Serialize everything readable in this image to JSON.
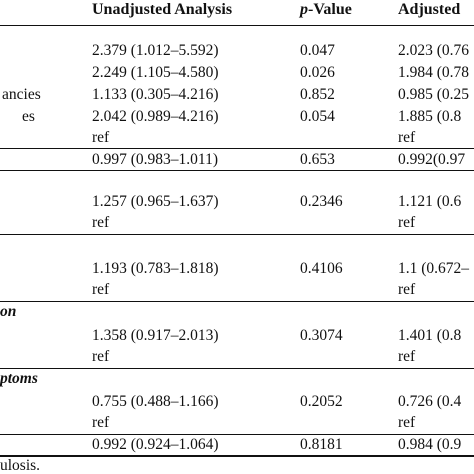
{
  "header": {
    "col_unadjusted": "Unadjusted Analysis",
    "col_pvalue_p": "p",
    "col_pvalue_rest": "-Value",
    "col_adjusted": "Adjusted"
  },
  "rows": {
    "r1_label": "",
    "r1_u": "2.379 (1.012–5.592)",
    "r1_p": "0.047",
    "r1_a": "2.023 (0.76",
    "r2_u": "2.249 (1.105–4.580)",
    "r2_p": "0.026",
    "r2_a": "1.984 (0.78",
    "r3_label": "ancies",
    "r3_u": "1.133 (0.305–4.216)",
    "r3_p": "0.852",
    "r3_a": "0.985 (0.25",
    "r4_label": "es",
    "r4_u": "2.042 (0.989–4.216)",
    "r4_p": "0.054",
    "r4_a": "1.885 (0.8",
    "r5_u": "ref",
    "r5_a": "ref",
    "r6_u": "0.997 (0.983–1.011)",
    "r6_p": "0.653",
    "r6_a": "0.992(0.97",
    "r7_u": "1.257 (0.965–1.637)",
    "r7_p": "0.2346",
    "r7_a": "1.121 (0.6",
    "r8_u": "ref",
    "r8_a": "ref",
    "r9_u": "1.193 (0.783–1.818)",
    "r9_p": "0.4106",
    "r9_a": "1.1 (0.672–",
    "r10_u": "ref",
    "r10_a": "ref",
    "sec_on": "on",
    "r11_u": "1.358 (0.917–2.013)",
    "r11_p": "0.3074",
    "r11_a": "1.401 (0.8",
    "r12_u": "ref",
    "r12_a": "ref",
    "sec_ptoms": "ptoms",
    "r13_u": "0.755 (0.488–1.166)",
    "r13_p": "0.2052",
    "r13_a": "0.726 (0.4",
    "r14_u": "ref",
    "r14_a": "ref",
    "r15_u": "0.992 (0.924–1.064)",
    "r15_p": "0.8181",
    "r15_a": "0.984 (0.9"
  },
  "footnote": "ulosis."
}
